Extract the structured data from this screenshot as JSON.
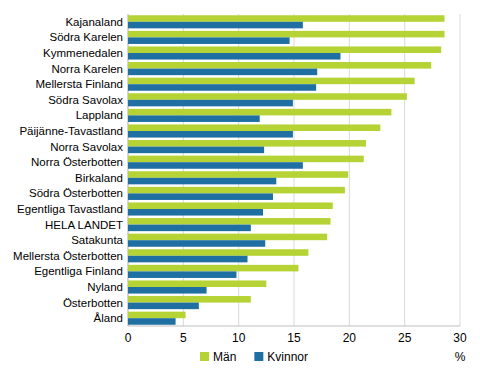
{
  "chart_data": {
    "type": "bar",
    "orientation": "horizontal",
    "grid": true,
    "legend": "bottom",
    "xlabel": "%",
    "categories": [
      "Kajanaland",
      "Södra Karelen",
      "Kymmenedalen",
      "Norra Karelen",
      "Mellersta Finland",
      "Södra Savolax",
      "Lappland",
      "Päijänne-Tavastland",
      "Norra Savolax",
      "Norra Österbotten",
      "Birkaland",
      "Södra Österbotten",
      "Egentliga Tavastland",
      "HELA LANDET",
      "Satakunta",
      "Mellersta Österbotten",
      "Egentliga Finland",
      "Nyland",
      "Österbotten",
      "Åland"
    ],
    "series": [
      {
        "name": "Män",
        "color": "#b5d334",
        "values": [
          28.6,
          28.6,
          28.3,
          27.4,
          25.9,
          25.2,
          23.8,
          22.8,
          21.5,
          21.3,
          19.9,
          19.6,
          18.5,
          18.3,
          18.0,
          16.3,
          15.4,
          12.5,
          11.1,
          5.2
        ]
      },
      {
        "name": "Kvinnor",
        "color": "#1f6fa3",
        "values": [
          15.8,
          14.6,
          19.2,
          17.1,
          17.0,
          14.9,
          11.9,
          14.9,
          12.3,
          15.8,
          13.4,
          13.1,
          12.2,
          11.1,
          12.4,
          10.8,
          9.8,
          7.1,
          6.4,
          4.3
        ]
      }
    ],
    "xlim": [
      0,
      30
    ],
    "xticks": [
      0,
      5,
      10,
      15,
      20,
      25,
      30
    ]
  }
}
